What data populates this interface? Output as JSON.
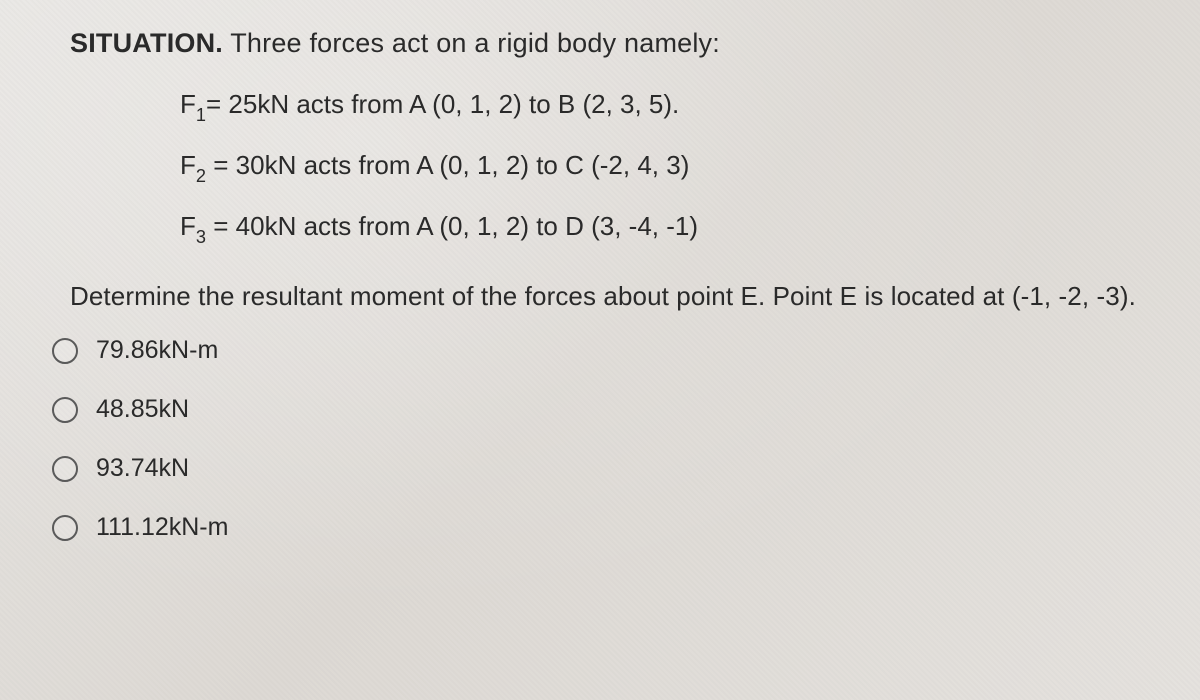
{
  "situation": {
    "label": "SITUATION.",
    "intro": "Three forces act on a rigid body namely:"
  },
  "forces": [
    {
      "name": "F",
      "sub": "1",
      "rest": "= 25kN acts from A (0, 1, 2) to B (2, 3, 5)."
    },
    {
      "name": "F",
      "sub": "2",
      "rest": " = 30kN acts from A (0, 1, 2) to C (-2, 4, 3)"
    },
    {
      "name": "F",
      "sub": "3",
      "rest": " = 40kN acts from A (0, 1, 2) to D (3, -4, -1)"
    }
  ],
  "question": "Determine the resultant moment of the forces about point E. Point E is located at (-1, -2, -3).",
  "options": [
    {
      "label": "79.86kN-m"
    },
    {
      "label": "48.85kN"
    },
    {
      "label": "93.74kN"
    },
    {
      "label": "111.12kN-m"
    }
  ],
  "colors": {
    "text": "#2a2a2a",
    "radio_border": "#5a5a5a",
    "bg_from": "#e8e6e3",
    "bg_to": "#e5e2de"
  },
  "fontsize": {
    "body": 26,
    "situation": 27,
    "option": 25
  }
}
